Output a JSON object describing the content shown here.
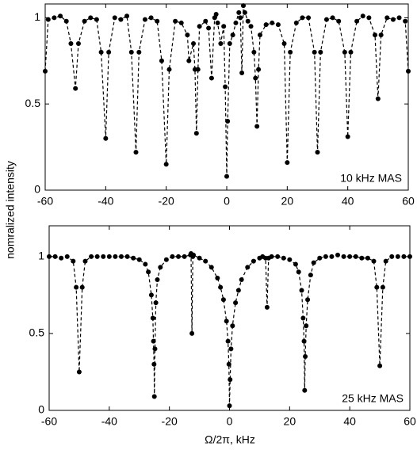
{
  "chart_data": [
    {
      "type": "line",
      "annotation": "10 kHz MAS",
      "ylabel": "nomralized intensity",
      "color": "#000000",
      "line_style": "dashed",
      "x": [
        -60,
        -59,
        -57,
        -55,
        -53,
        -51.5,
        -50,
        -49,
        -47,
        -45,
        -43,
        -41.5,
        -40,
        -39,
        -37,
        -35,
        -33,
        -31.5,
        -30,
        -29,
        -27,
        -25,
        -23,
        -21.5,
        -20,
        -19,
        -17,
        -15,
        -13,
        -12.5,
        -11,
        -10.5,
        -10,
        -9.5,
        -9,
        -7,
        -6,
        -5,
        -4,
        -3.5,
        -3,
        -2,
        -1,
        -0.5,
        0,
        0.3,
        1,
        2,
        3,
        4,
        4.5,
        5,
        5.5,
        6,
        7,
        8,
        9,
        9.5,
        10,
        10.5,
        11,
        13,
        15,
        17,
        19,
        20,
        21,
        23,
        25,
        27,
        29,
        30,
        31,
        33,
        35,
        37,
        39,
        40,
        41,
        43,
        45,
        47,
        49,
        50,
        51,
        53,
        55,
        57,
        59,
        60
      ],
      "values": [
        0.69,
        0.99,
        1.0,
        1.01,
        0.98,
        0.85,
        0.59,
        0.85,
        0.98,
        1.0,
        0.99,
        0.8,
        0.3,
        0.8,
        1.0,
        0.99,
        1.01,
        0.8,
        0.22,
        0.8,
        0.99,
        1.0,
        0.98,
        0.75,
        0.15,
        0.7,
        0.98,
        0.97,
        0.9,
        0.75,
        0.85,
        0.7,
        0.33,
        0.7,
        0.95,
        0.98,
        0.94,
        0.65,
        1.0,
        1.02,
        0.97,
        0.85,
        0.95,
        0.6,
        0.08,
        0.4,
        0.85,
        0.9,
        0.97,
        1.03,
        1.0,
        0.68,
        1.07,
        1.03,
        0.98,
        0.95,
        0.8,
        0.65,
        0.37,
        0.7,
        0.9,
        0.96,
        0.97,
        0.96,
        0.85,
        0.16,
        0.8,
        0.97,
        1.0,
        1.0,
        0.8,
        0.22,
        0.8,
        0.99,
        1.0,
        0.98,
        0.8,
        0.31,
        0.8,
        0.98,
        1.01,
        1.0,
        0.9,
        0.53,
        0.9,
        1.0,
        0.99,
        1.0,
        0.98,
        0.69
      ],
      "xlim": [
        -60,
        60
      ],
      "xticks": [
        -60,
        -40,
        -20,
        0,
        20,
        40,
        60
      ],
      "ylim": [
        0,
        1.08
      ],
      "yticks": [
        0,
        0.5,
        1
      ]
    },
    {
      "type": "line",
      "annotation": "25 kHz MAS",
      "xlabel": "Ω/2π, kHz",
      "color": "#000000",
      "line_style": "dashed",
      "x": [
        -60,
        -58,
        -56,
        -54,
        -52,
        -51,
        -50,
        -49,
        -48,
        -46,
        -44,
        -42,
        -40,
        -38,
        -36,
        -34,
        -32,
        -30,
        -28,
        -27,
        -26,
        -25.5,
        -25.3,
        -25.1,
        -25,
        -24.8,
        -24.5,
        -24,
        -23,
        -21,
        -19,
        -17,
        -15,
        -13,
        -12.8,
        -12.5,
        -12.2,
        -12,
        -10,
        -8,
        -6,
        -4,
        -3,
        -2,
        -1,
        -0.5,
        -0.2,
        0,
        0.2,
        0.5,
        1,
        2,
        3,
        4,
        6,
        8,
        10,
        11,
        12,
        12.5,
        13,
        14,
        16,
        18,
        20,
        22,
        23,
        24,
        24.5,
        24.8,
        25,
        25.2,
        25.5,
        26,
        27,
        28,
        30,
        32,
        34,
        36,
        38,
        40,
        42,
        44,
        46,
        48,
        49,
        50,
        51,
        52,
        54,
        56,
        58,
        60
      ],
      "values": [
        1.0,
        1.0,
        0.99,
        1.0,
        0.97,
        0.8,
        0.25,
        0.8,
        0.97,
        1.0,
        1.0,
        1.0,
        1.0,
        1.0,
        1.0,
        1.0,
        0.99,
        0.98,
        0.95,
        0.9,
        0.75,
        0.6,
        0.45,
        0.3,
        0.09,
        0.4,
        0.7,
        0.85,
        0.93,
        0.98,
        1.0,
        1.0,
        1.0,
        1.01,
        1.02,
        0.5,
        1.0,
        1.01,
        0.99,
        0.97,
        0.93,
        0.86,
        0.8,
        0.72,
        0.58,
        0.45,
        0.3,
        0.03,
        0.2,
        0.4,
        0.55,
        0.7,
        0.78,
        0.85,
        0.93,
        0.97,
        0.99,
        1.0,
        0.99,
        0.67,
        0.99,
        1.0,
        1.0,
        0.99,
        0.98,
        0.95,
        0.9,
        0.78,
        0.6,
        0.45,
        0.13,
        0.35,
        0.55,
        0.72,
        0.88,
        0.96,
        0.99,
        1.0,
        1.0,
        1.01,
        1.0,
        1.0,
        1.0,
        0.99,
        0.99,
        0.97,
        0.8,
        0.29,
        0.8,
        0.97,
        1.0,
        1.0,
        1.0,
        1.0
      ],
      "xlim": [
        -60,
        60
      ],
      "xticks": [
        -60,
        -40,
        -20,
        0,
        20,
        40,
        60
      ],
      "ylim": [
        0,
        1.2
      ],
      "yticks": [
        0,
        0.5,
        1
      ]
    }
  ]
}
